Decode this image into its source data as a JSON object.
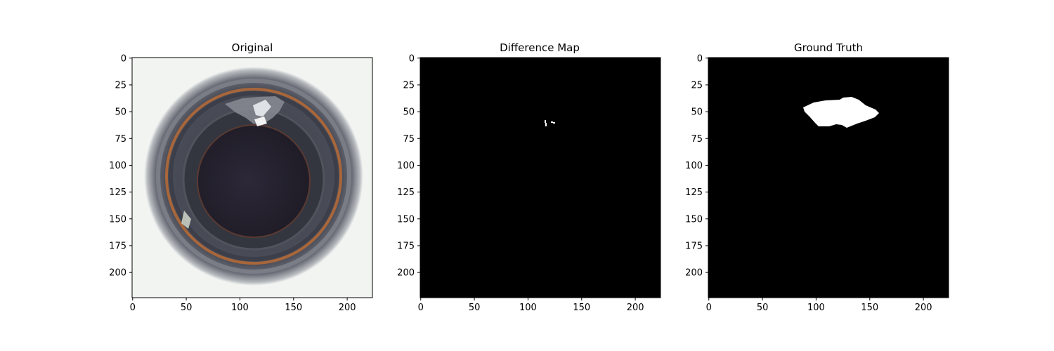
{
  "figure": {
    "panels": [
      {
        "title": "Original",
        "xticks": [
          "0",
          "50",
          "100",
          "150",
          "200"
        ],
        "yticks": [
          "0",
          "25",
          "50",
          "75",
          "100",
          "125",
          "150",
          "175",
          "200"
        ]
      },
      {
        "title": "Difference Map",
        "xticks": [
          "0",
          "50",
          "100",
          "150",
          "200"
        ],
        "yticks": [
          "0",
          "25",
          "50",
          "75",
          "100",
          "125",
          "150",
          "175",
          "200"
        ]
      },
      {
        "title": "Ground Truth",
        "xticks": [
          "0",
          "50",
          "100",
          "150",
          "200"
        ],
        "yticks": [
          "0",
          "25",
          "50",
          "75",
          "100",
          "125",
          "150",
          "175",
          "200"
        ]
      }
    ],
    "image_extent": {
      "x": [
        0,
        224
      ],
      "y": [
        0,
        224
      ]
    },
    "colors": {
      "background_dark": "#000000",
      "mask_white": "#ffffff",
      "copper_ring": "#a8663a"
    }
  }
}
